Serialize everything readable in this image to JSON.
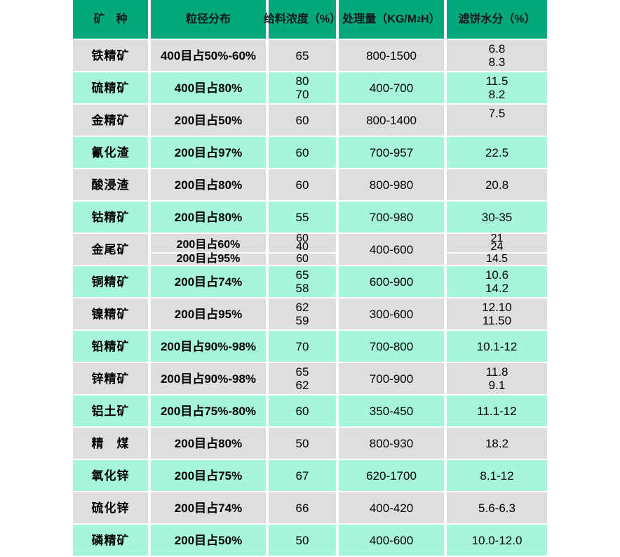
{
  "colors": {
    "header_green": "#00a87b",
    "row_gray": "#dedede",
    "row_mint": "#a5f6da",
    "header_text": "#10181c",
    "cell_text": "#000000"
  },
  "table": {
    "header": {
      "mineral": "矿　种",
      "psd": "粒径分布",
      "feed_concentration": "给料浓度（%）",
      "capacity_prefix": "处理量（KG/M",
      "capacity_sup": "2",
      "capacity_suffix": "H）",
      "moisture": "滤饼水分（%）"
    },
    "rows": [
      {
        "mineral": "铁精矿",
        "psd": "400目占50%-60%",
        "conc": [
          "65"
        ],
        "capacity": "800-1500",
        "moisture": [
          "6.8",
          "8.3"
        ]
      },
      {
        "mineral": "硫精矿",
        "psd": "400目占80%",
        "conc": [
          "80",
          "70"
        ],
        "capacity": "400-700",
        "moisture": [
          "11.5",
          "8.2"
        ]
      },
      {
        "mineral": "金精矿",
        "psd": "200目占50%",
        "conc": [
          "60"
        ],
        "capacity": "800-1400",
        "moisture": [
          "7.5",
          " "
        ]
      },
      {
        "mineral": "氰化渣",
        "psd": "200目占97%",
        "conc": [
          "60"
        ],
        "capacity": "700-957",
        "moisture": [
          "22.5"
        ]
      },
      {
        "mineral": "酸浸渣",
        "psd": "200目占80%",
        "conc": [
          "60"
        ],
        "capacity": "800-980",
        "moisture": [
          "20.8"
        ]
      },
      {
        "mineral": "钴精矿",
        "psd": "200目占80%",
        "conc": [
          "55"
        ],
        "capacity": "700-980",
        "moisture": [
          "30-35"
        ]
      },
      {
        "mineral": "金尾矿",
        "psd_top": "200目占60%",
        "psd_bottom": "200目占95%",
        "conc_top": [
          "60",
          "40"
        ],
        "conc_bottom": "60",
        "capacity": "400-600",
        "moisture_top": [
          "21",
          "24"
        ],
        "moisture_bottom": "14.5"
      },
      {
        "mineral": "铜精矿",
        "psd": "200目占74%",
        "conc": [
          "65",
          "58"
        ],
        "capacity": "600-900",
        "moisture": [
          "10.6",
          "14.2"
        ]
      },
      {
        "mineral": "镍精矿",
        "psd": "200目占95%",
        "conc": [
          "62",
          "59"
        ],
        "capacity": "300-600",
        "moisture": [
          "12.10",
          "11.50"
        ]
      },
      {
        "mineral": "铅精矿",
        "psd": "200目占90%-98%",
        "conc": [
          "70"
        ],
        "capacity": "700-800",
        "moisture": [
          "10.1-12"
        ]
      },
      {
        "mineral": "锌精矿",
        "psd": "200目占90%-98%",
        "conc": [
          "65",
          "62"
        ],
        "capacity": "700-900",
        "moisture": [
          "11.8",
          "9.1"
        ]
      },
      {
        "mineral": "铝土矿",
        "psd": "200目占75%-80%",
        "conc": [
          "60"
        ],
        "capacity": "350-450",
        "moisture": [
          "11.1-12"
        ]
      },
      {
        "mineral": "精　煤",
        "psd": "200目占80%",
        "conc": [
          "50"
        ],
        "capacity": "800-930",
        "moisture": [
          "18.2"
        ]
      },
      {
        "mineral": "氧化锌",
        "psd": "200目占75%",
        "conc": [
          "67"
        ],
        "capacity": "620-1700",
        "moisture": [
          "8.1-12"
        ]
      },
      {
        "mineral": "硫化锌",
        "psd": "200目占74%",
        "conc": [
          "66"
        ],
        "capacity": "400-420",
        "moisture": [
          "5.6-6.3"
        ]
      },
      {
        "mineral": "磷精矿",
        "psd": "200目占50%",
        "conc": [
          "50"
        ],
        "capacity": "400-600",
        "moisture": [
          "10.0-12.0"
        ]
      }
    ]
  }
}
